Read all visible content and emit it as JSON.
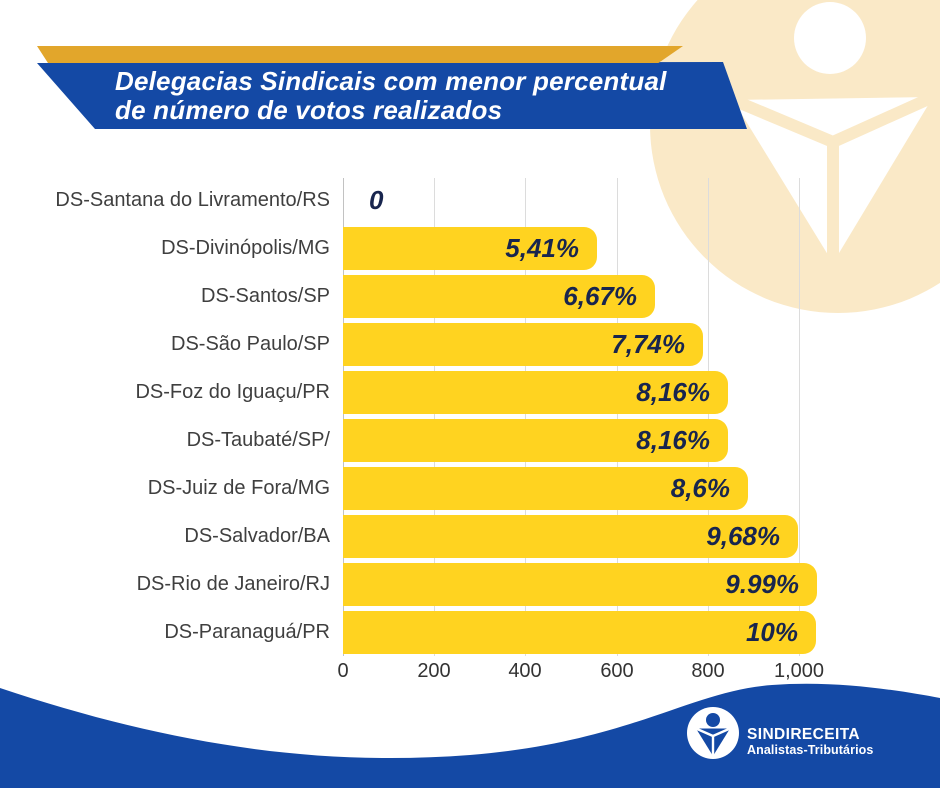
{
  "header": {
    "title_line1": "Delegacias Sindicais com menor percentual",
    "title_line2": "de número de votos realizados"
  },
  "colors": {
    "banner_blue": "#1449A5",
    "ribbon_gold": "#E2A62B",
    "bar_yellow": "#FFD320",
    "watermark_cream": "#FAE9C7",
    "value_text_navy": "#18254E",
    "category_label_gray": "#3F3F3F",
    "gridline_gray": "#DCDCDC"
  },
  "chart_data": {
    "type": "bar",
    "orientation": "horizontal",
    "title": "Delegacias Sindicais com menor percentual de número de votos realizados",
    "categories": [
      "DS-Santana do Livramento/RS",
      "DS-Divinópolis/MG",
      "DS-Santos/SP",
      "DS-São Paulo/SP",
      "DS-Foz do Iguaçu/PR",
      "DS-Taubaté/SP/",
      "DS-Juiz de Fora/MG",
      "DS-Salvador/BA",
      "DS-Rio de Janeiro/RJ",
      "DS-Paranaguá/PR"
    ],
    "value_labels": [
      "0",
      "5,41%",
      "6,67%",
      "7,74%",
      "8,16%",
      "8,16%",
      "8,6%",
      "9,68%",
      "9.99%",
      "10%"
    ],
    "values_percent": [
      0,
      5.41,
      6.67,
      7.74,
      8.16,
      8.16,
      8.6,
      9.68,
      9.99,
      10
    ],
    "bar_extent_axis_units": [
      0,
      557,
      684,
      789,
      844,
      844,
      888,
      998,
      1039,
      1037
    ],
    "x_ticks": [
      "0",
      "200",
      "400",
      "600",
      "800",
      "1,000"
    ],
    "x_tick_values": [
      0,
      200,
      400,
      600,
      800,
      1000
    ],
    "xlim": [
      0,
      1000
    ],
    "grid": true,
    "legend": false
  },
  "footer": {
    "org_name": "SINDIRECEITA",
    "org_subtitle": "Analistas-Tributários"
  }
}
